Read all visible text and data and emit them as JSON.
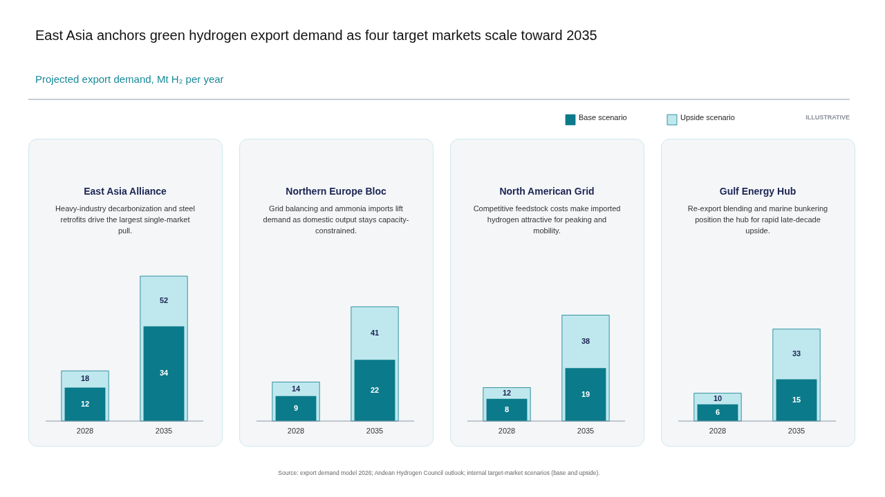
{
  "chart_data": [
    {
      "type": "bar",
      "title": "East Asia Alliance",
      "subtitle": "Heavy-industry decarbonization and steel retrofits drive the largest single-market pull.",
      "categories": [
        "2028",
        "2035"
      ],
      "series": [
        {
          "name": "Base scenario",
          "color": "#0b7a8a",
          "values": [
            12,
            34
          ]
        },
        {
          "name": "Upside scenario",
          "color": "#bfe8ee",
          "values": [
            18,
            52
          ]
        }
      ],
      "data_labels": true,
      "legend": "top right",
      "annotations": [
        "East Asia anchors green hydrogen export demand as four target markets scale toward 2035",
        "Projected export demand, Mt H₂ per year",
        "ILLUSTRATIVE",
        "Source: export demand model 2026; Andean Hydrogen Council outlook; internal target-market scenarios (base and upside)."
      ]
    },
    {
      "type": "bar",
      "title": "Northern Europe Bloc",
      "subtitle": "Grid balancing and ammonia imports lift demand as domestic output stays capacity-constrained.",
      "categories": [
        "2028",
        "2035"
      ],
      "series": [
        {
          "name": "Base scenario",
          "color": "#0b7a8a",
          "values": [
            9,
            22
          ]
        },
        {
          "name": "Upside scenario",
          "color": "#bfe8ee",
          "values": [
            14,
            41
          ]
        }
      ],
      "data_labels": true
    },
    {
      "type": "bar",
      "title": "North American Grid",
      "subtitle": "Competitive feedstock costs make imported hydrogen attractive for peaking and mobility.",
      "categories": [
        "2028",
        "2035"
      ],
      "series": [
        {
          "name": "Base scenario",
          "color": "#0b7a8a",
          "values": [
            8,
            19
          ]
        },
        {
          "name": "Upside scenario",
          "color": "#bfe8ee",
          "values": [
            12,
            38
          ]
        }
      ],
      "data_labels": true
    },
    {
      "type": "bar",
      "title": "Gulf Energy Hub",
      "subtitle": "Re-export blending and marine bunkering position the hub for rapid late-decade upside.",
      "categories": [
        "2028",
        "2035"
      ],
      "series": [
        {
          "name": "Base scenario",
          "color": "#0b7a8a",
          "values": [
            6,
            15
          ]
        },
        {
          "name": "Upside scenario",
          "color": "#bfe8ee",
          "values": [
            10,
            33
          ]
        }
      ],
      "data_labels": true
    }
  ]
}
